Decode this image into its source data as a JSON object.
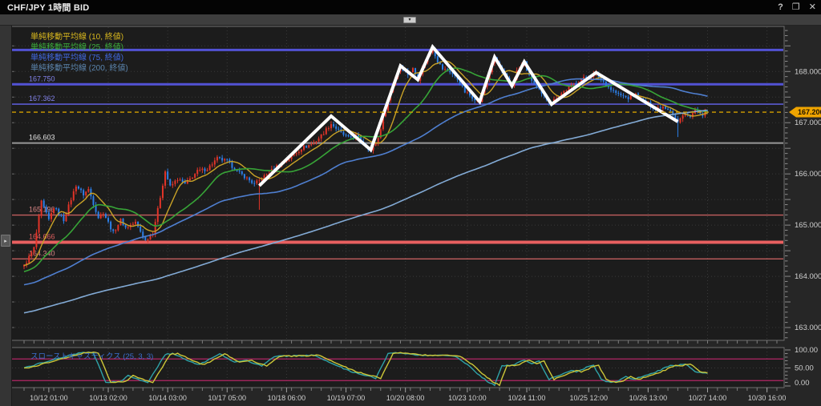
{
  "window": {
    "title": "CHF/JPY 1時間 BID",
    "controls": {
      "help": "?",
      "maximize": "❐",
      "close": "✕"
    }
  },
  "toolbar": {
    "collapse_glyph": "▾"
  },
  "sidebar": {
    "toggle_glyph": "▸"
  },
  "legend_main": [
    {
      "label": "単純移動平均線 (10, 終値)",
      "color": "#d8b71e"
    },
    {
      "label": "単純移動平均線 (25, 終値)",
      "color": "#3cae3c"
    },
    {
      "label": "単純移動平均線 (75, 終値)",
      "color": "#4169e1"
    },
    {
      "label": "単純移動平均線 (200, 終値)",
      "color": "#5b84ad"
    }
  ],
  "legend_stoch": {
    "label": "スローストキャスティクス (25, 3, 3)",
    "color": "#3a6fd0"
  },
  "current_price": {
    "value": "167.206",
    "price": 167.206,
    "badge_color": "#efa400",
    "line_color": "#d39e00",
    "text_color": "#1d1400"
  },
  "hlines": [
    {
      "price": 168.42,
      "width": 3,
      "color": "#5252d4",
      "label": "",
      "label_color": "#8080e8"
    },
    {
      "price": 167.75,
      "width": 3,
      "color": "#5252d4",
      "label": "167.750",
      "label_color": "#8080e8"
    },
    {
      "price": 167.362,
      "width": 1.6,
      "color": "#5a5ad0",
      "label": "167.362",
      "label_color": "#8080e8"
    },
    {
      "price": 166.603,
      "width": 2,
      "color": "#989898",
      "label": "166.603",
      "label_color": "#e2e2e2"
    },
    {
      "price": 165.196,
      "width": 1.4,
      "color": "#c25f5f",
      "label": "165.196",
      "label_color": "#d98686"
    },
    {
      "price": 164.666,
      "width": 4,
      "color": "#e86060",
      "label": "164.666",
      "label_color": "#e06060"
    },
    {
      "price": 164.34,
      "width": 1.4,
      "color": "#c25f5f",
      "label": "164.340",
      "label_color": "#d98686"
    }
  ],
  "price_axis": {
    "labels": [
      {
        "text": "168.000",
        "value": 168
      },
      {
        "text": "167.000",
        "value": 167
      },
      {
        "text": "166.000",
        "value": 166
      },
      {
        "text": "165.000",
        "value": 165
      },
      {
        "text": "164.000",
        "value": 164
      },
      {
        "text": "163.000",
        "value": 163
      }
    ]
  },
  "stoch_axis": {
    "labels": [
      {
        "text": "100.00",
        "value": 100
      },
      {
        "text": "50.00",
        "value": 50
      },
      {
        "text": "0.00",
        "value": 0
      }
    ]
  },
  "x_axis": {
    "labels": [
      {
        "text": "10/12 01:00",
        "bar": 10
      },
      {
        "text": "10/13 02:00",
        "bar": 34
      },
      {
        "text": "10/14 03:00",
        "bar": 58
      },
      {
        "text": "10/17 05:00",
        "bar": 82
      },
      {
        "text": "10/18 06:00",
        "bar": 106
      },
      {
        "text": "10/19 07:00",
        "bar": 130
      },
      {
        "text": "10/20 08:00",
        "bar": 154
      },
      {
        "text": "10/23 10:00",
        "bar": 179
      },
      {
        "text": "10/24 11:00",
        "bar": 203
      },
      {
        "text": "10/25 12:00",
        "bar": 228
      },
      {
        "text": "10/26 13:00",
        "bar": 252
      },
      {
        "text": "10/27 14:00",
        "bar": 276
      },
      {
        "text": "10/30 16:00",
        "bar": 300
      }
    ]
  },
  "chart_data": {
    "type": "candlestick",
    "instrument": "CHF/JPY",
    "timeframe": "1時間",
    "side": "BID",
    "bars": 277,
    "ylim": [
      162.75,
      168.88
    ],
    "grid_step": 0.5,
    "up_color": "#e23428",
    "down_color": "#2c7fe8",
    "price_anchors": [
      [
        0,
        164.2
      ],
      [
        4,
        164.55
      ],
      [
        7,
        165.45
      ],
      [
        10,
        165.1
      ],
      [
        12,
        165.35
      ],
      [
        16,
        165.1
      ],
      [
        21,
        165.78
      ],
      [
        24,
        165.6
      ],
      [
        26,
        165.7
      ],
      [
        30,
        165.15
      ],
      [
        32,
        165.25
      ],
      [
        36,
        164.85
      ],
      [
        39,
        165.1
      ],
      [
        41,
        164.95
      ],
      [
        45,
        165.05
      ],
      [
        49,
        164.7
      ],
      [
        52,
        164.85
      ],
      [
        54,
        165.3
      ],
      [
        57,
        166.05
      ],
      [
        59,
        165.75
      ],
      [
        62,
        165.9
      ],
      [
        65,
        165.8
      ],
      [
        70,
        166.05
      ],
      [
        74,
        166.1
      ],
      [
        78,
        166.3
      ],
      [
        82,
        166.25
      ],
      [
        86,
        166.05
      ],
      [
        89,
        165.95
      ],
      [
        93,
        165.8
      ],
      [
        97,
        165.95
      ],
      [
        102,
        166.15
      ],
      [
        107,
        166.3
      ],
      [
        112,
        166.5
      ],
      [
        117,
        166.6
      ],
      [
        120,
        166.75
      ],
      [
        124,
        166.98
      ],
      [
        128,
        166.8
      ],
      [
        131,
        166.7
      ],
      [
        134,
        166.75
      ],
      [
        140,
        166.45
      ],
      [
        143,
        166.7
      ],
      [
        145,
        167.1
      ],
      [
        148,
        167.6
      ],
      [
        150,
        167.9
      ],
      [
        152,
        168.1
      ],
      [
        155,
        167.95
      ],
      [
        157,
        168.05
      ],
      [
        159,
        167.85
      ],
      [
        161,
        168.1
      ],
      [
        163,
        168.3
      ],
      [
        165,
        168.45
      ],
      [
        167,
        168.2
      ],
      [
        169,
        168.05
      ],
      [
        172,
        168.0
      ],
      [
        175,
        167.85
      ],
      [
        178,
        167.6
      ],
      [
        181,
        167.5
      ],
      [
        184,
        167.42
      ],
      [
        186,
        167.7
      ],
      [
        188,
        168.0
      ],
      [
        190,
        168.27
      ],
      [
        193,
        168.0
      ],
      [
        195,
        167.85
      ],
      [
        197,
        167.72
      ],
      [
        199,
        168.0
      ],
      [
        202,
        168.18
      ],
      [
        204,
        167.9
      ],
      [
        207,
        167.7
      ],
      [
        209,
        167.55
      ],
      [
        213,
        167.38
      ],
      [
        215,
        167.5
      ],
      [
        219,
        167.65
      ],
      [
        222,
        167.75
      ],
      [
        225,
        167.85
      ],
      [
        228,
        167.9
      ],
      [
        231,
        167.95
      ],
      [
        234,
        167.8
      ],
      [
        237,
        167.65
      ],
      [
        240,
        167.55
      ],
      [
        244,
        167.48
      ],
      [
        247,
        167.55
      ],
      [
        249,
        167.45
      ],
      [
        253,
        167.35
      ],
      [
        255,
        167.28
      ],
      [
        258,
        167.32
      ],
      [
        261,
        167.25
      ],
      [
        264,
        167.0
      ],
      [
        267,
        167.2
      ],
      [
        269,
        167.1
      ],
      [
        271,
        167.25
      ],
      [
        273,
        167.15
      ],
      [
        276,
        167.2
      ]
    ],
    "special_wicks": [
      {
        "bar": 95,
        "low": 165.3
      },
      {
        "bar": 165,
        "high": 168.5
      },
      {
        "bar": 264,
        "low": 166.72
      }
    ],
    "ma_series": [
      {
        "name": "SMA10",
        "period": 10,
        "color": "#c9a227",
        "width": 1.4
      },
      {
        "name": "SMA25",
        "period": 25,
        "color": "#37a437",
        "width": 1.6
      },
      {
        "name": "SMA75",
        "period": 75,
        "color": "#4f7fd0",
        "width": 1.6
      },
      {
        "name": "SMA200",
        "period": 200,
        "color": "#83abd6",
        "width": 1.6
      }
    ],
    "zigzag": {
      "color": "#ffffff",
      "width": 4,
      "points": [
        [
          95,
          165.77
        ],
        [
          124,
          167.13
        ],
        [
          140,
          166.47
        ],
        [
          152,
          168.11
        ],
        [
          159,
          167.84
        ],
        [
          165,
          168.48
        ],
        [
          184,
          167.41
        ],
        [
          190,
          168.28
        ],
        [
          197,
          167.72
        ],
        [
          202,
          168.19
        ],
        [
          213,
          167.36
        ],
        [
          231,
          167.98
        ],
        [
          264,
          167.02
        ]
      ]
    },
    "stoch": {
      "name": "スローストキャスティクス",
      "params": [
        25,
        3,
        3
      ],
      "ylim": [
        0,
        100
      ],
      "bands": [
        {
          "value": 75,
          "color": "#b32565"
        },
        {
          "value": 15,
          "color": "#b32565"
        }
      ],
      "k_color": "#2fa3a8",
      "d_color": "#cdc738",
      "anchors": [
        [
          0,
          50
        ],
        [
          10,
          70
        ],
        [
          23,
          93
        ],
        [
          28,
          92
        ],
        [
          33,
          10
        ],
        [
          39,
          12
        ],
        [
          42,
          28
        ],
        [
          50,
          10
        ],
        [
          57,
          88
        ],
        [
          60,
          90
        ],
        [
          68,
          65
        ],
        [
          71,
          60
        ],
        [
          79,
          89
        ],
        [
          85,
          67
        ],
        [
          90,
          70
        ],
        [
          96,
          56
        ],
        [
          101,
          82
        ],
        [
          117,
          85
        ],
        [
          125,
          60
        ],
        [
          132,
          40
        ],
        [
          142,
          22
        ],
        [
          147,
          89
        ],
        [
          149,
          93
        ],
        [
          158,
          87
        ],
        [
          163,
          84
        ],
        [
          168,
          87
        ],
        [
          174,
          82
        ],
        [
          179,
          60
        ],
        [
          184,
          29
        ],
        [
          188,
          8
        ],
        [
          190,
          3
        ],
        [
          193,
          55
        ],
        [
          198,
          60
        ],
        [
          202,
          73
        ],
        [
          205,
          62
        ],
        [
          208,
          70
        ],
        [
          212,
          18
        ],
        [
          216,
          30
        ],
        [
          221,
          44
        ],
        [
          223,
          38
        ],
        [
          228,
          55
        ],
        [
          230,
          58
        ],
        [
          233,
          18
        ],
        [
          236,
          11
        ],
        [
          240,
          13
        ],
        [
          243,
          27
        ],
        [
          246,
          18
        ],
        [
          252,
          31
        ],
        [
          257,
          44
        ],
        [
          261,
          58
        ],
        [
          263,
          55
        ],
        [
          267,
          62
        ],
        [
          271,
          40
        ],
        [
          276,
          36
        ]
      ]
    }
  }
}
